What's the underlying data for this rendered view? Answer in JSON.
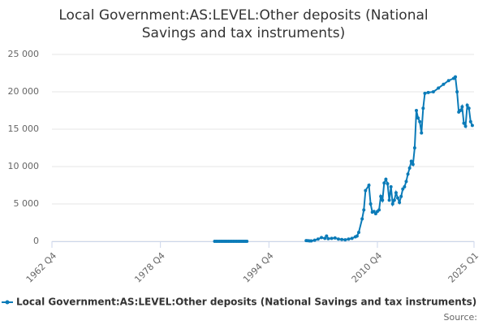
{
  "chart_data": {
    "type": "line",
    "title": "Local Government:AS:LEVEL:Other deposits (National Savings and tax instruments)",
    "source": "Source:",
    "x": [
      1986.75,
      1987,
      1987.25,
      1987.5,
      1987.75,
      1988,
      1988.25,
      1988.5,
      1988.75,
      1989,
      1989.25,
      1989.5,
      1989.75,
      1990,
      1990.25,
      1990.5,
      1990.75,
      1991,
      1991.25,
      1991.5,
      1995,
      2000.25,
      2000.5,
      2000.75,
      2001,
      2001.5,
      2002,
      2002.5,
      2003,
      2003.25,
      2003.5,
      2004,
      2004.5,
      2005,
      2005.5,
      2006,
      2006.5,
      2007,
      2007.5,
      2007.75,
      2008,
      2008.5,
      2008.75,
      2009,
      2009.5,
      2009.75,
      2010,
      2010.25,
      2010.5,
      2010.75,
      2011,
      2011.25,
      2011.5,
      2011.75,
      2012,
      2012.25,
      2012.5,
      2012.75,
      2013,
      2013.25,
      2013.5,
      2013.75,
      2014,
      2014.25,
      2014.5,
      2014.75,
      2015,
      2015.25,
      2015.5,
      2015.75,
      2016,
      2016.25,
      2016.5,
      2016.75,
      2017,
      2017.25,
      2017.5,
      2017.75,
      2018.25,
      2019,
      2019.75,
      2020.5,
      2021.25,
      2022,
      2022.25,
      2022.5,
      2022.75,
      2023,
      2023.25,
      2023.5,
      2023.75,
      2024,
      2024.25,
      2024.5,
      2024.75
    ],
    "series": [
      {
        "name": "Local Government:AS:LEVEL:Other deposits (National Savings and tax instruments)",
        "color": "#0b7bb8",
        "values": [
          0,
          0,
          0,
          0,
          0,
          0,
          0,
          0,
          0,
          0,
          0,
          0,
          0,
          0,
          0,
          0,
          0,
          0,
          0,
          0,
          null,
          100,
          80,
          50,
          60,
          150,
          300,
          500,
          400,
          700,
          350,
          400,
          450,
          300,
          250,
          200,
          300,
          400,
          600,
          700,
          1200,
          3000,
          4200,
          6800,
          7500,
          5000,
          3900,
          4000,
          3700,
          4000,
          4200,
          6000,
          5500,
          7800,
          8300,
          7700,
          5500,
          7300,
          5000,
          5500,
          6500,
          5800,
          5200,
          6000,
          7000,
          7300,
          8000,
          9000,
          9800,
          10700,
          10300,
          12500,
          17500,
          16500,
          16000,
          14500,
          17800,
          19800,
          19900,
          20000,
          20500,
          21000,
          21500,
          21800,
          22000,
          20000,
          17300,
          17500,
          18000,
          15800,
          15400,
          18200,
          17800,
          16000,
          15500
        ]
      }
    ],
    "xlim": [
      1962.75,
      2025
    ],
    "xticks": [
      {
        "value": 1962.75,
        "label": "1962 Q4"
      },
      {
        "value": 1978.75,
        "label": "1978 Q4"
      },
      {
        "value": 1994.75,
        "label": "1994 Q4"
      },
      {
        "value": 2010.75,
        "label": "2010 Q4"
      },
      {
        "value": 2025,
        "label": "2025 Q1"
      }
    ],
    "ylim": [
      0,
      25000
    ],
    "yticks": [
      0,
      {
        "value": 5000,
        "label": "5 000"
      },
      {
        "value": 10000,
        "label": "10 000"
      },
      {
        "value": 15000,
        "label": "15 000"
      },
      {
        "value": 20000,
        "label": "20 000"
      },
      {
        "value": 25000,
        "label": "25 000"
      }
    ],
    "grid": true
  }
}
